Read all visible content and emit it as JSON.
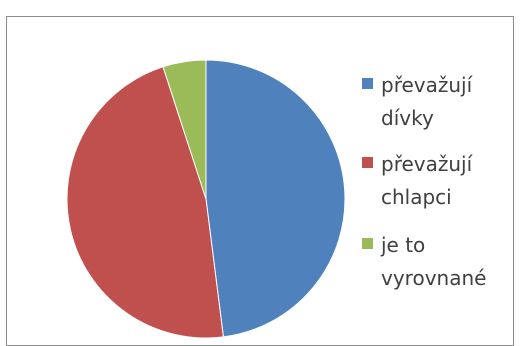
{
  "chart_data": {
    "type": "pie",
    "categories": [
      "převažují dívky",
      "převažují chlapci",
      "je to vyrovnané"
    ],
    "values": [
      48,
      47,
      5
    ],
    "colors": [
      "#4f81bd",
      "#c0504d",
      "#9bbb59"
    ],
    "legend_placement": "right",
    "legend": {
      "items": [
        {
          "line1": "převažují",
          "line2": "dívky"
        },
        {
          "line1": "převažují",
          "line2": "chlapci"
        },
        {
          "line1": "je to",
          "line2": "vyrovnané"
        }
      ]
    }
  }
}
